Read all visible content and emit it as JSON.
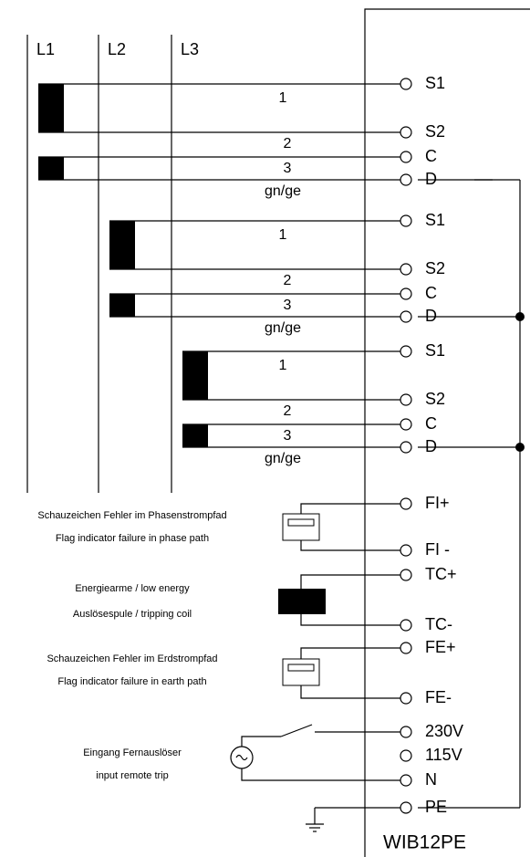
{
  "phases": [
    "L1",
    "L2",
    "L3"
  ],
  "ct_groups": [
    {
      "terminals": [
        "S1",
        "S2",
        "C",
        "D"
      ],
      "wires": [
        "1",
        "2",
        "3",
        "gn/ge"
      ]
    },
    {
      "terminals": [
        "S1",
        "S2",
        "C",
        "D"
      ],
      "wires": [
        "1",
        "2",
        "3",
        "gn/ge"
      ]
    },
    {
      "terminals": [
        "S1",
        "S2",
        "C",
        "D"
      ],
      "wires": [
        "1",
        "2",
        "3",
        "gn/ge"
      ]
    }
  ],
  "flag_phase": {
    "terminals": [
      "FI+",
      "FI -"
    ],
    "lines": [
      "Schauzeichen Fehler im Phasenstrompfad",
      "Flag indicator failure in phase path"
    ]
  },
  "tripping_coil": {
    "terminals": [
      "TC+",
      "TC-"
    ],
    "lines": [
      "Energiearme / low energy",
      "Auslösespule / tripping coil"
    ]
  },
  "flag_earth": {
    "terminals": [
      "FE+",
      "FE-"
    ],
    "lines": [
      "Schauzeichen Fehler im Erdstrompfad",
      "Flag indicator failure in earth path"
    ]
  },
  "remote_trip": {
    "terminals": [
      "230V",
      "115V",
      "N",
      "PE"
    ],
    "lines": [
      "Eingang Fernauslöser",
      "input remote trip"
    ]
  },
  "device": "WIB12PE"
}
